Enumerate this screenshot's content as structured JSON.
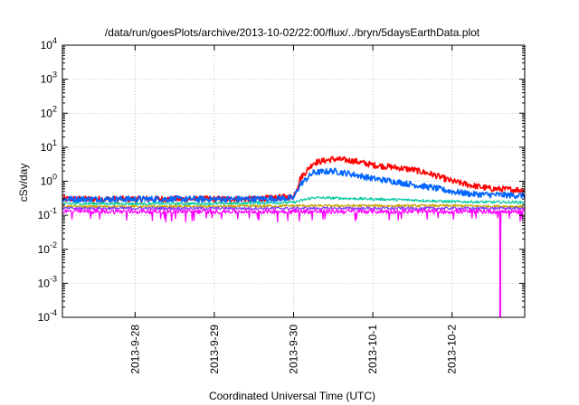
{
  "chart_data": {
    "type": "line",
    "title": "/data/run/goesPlots/archive/2013-10-02/22:00/flux/../bryn/5daysEarthData.plot",
    "xlabel": "Coordinated Universal Time (UTC)",
    "ylabel": "cSv/day",
    "yscale": "log",
    "ylim": [
      0.0001,
      10000
    ],
    "xlim": [
      "2013-09-27 02:00",
      "2013-10-02 22:00"
    ],
    "y_ticks": [
      {
        "base": "10",
        "exp": "-4",
        "value": 0.0001
      },
      {
        "base": "10",
        "exp": "-3",
        "value": 0.001
      },
      {
        "base": "10",
        "exp": "-2",
        "value": 0.01
      },
      {
        "base": "10",
        "exp": "-1",
        "value": 0.1
      },
      {
        "base": "10",
        "exp": "0",
        "value": 1
      },
      {
        "base": "10",
        "exp": "1",
        "value": 10
      },
      {
        "base": "10",
        "exp": "2",
        "value": 100
      },
      {
        "base": "10",
        "exp": "3",
        "value": 1000
      },
      {
        "base": "10",
        "exp": "4",
        "value": 10000
      }
    ],
    "x_ticks": [
      {
        "label": "2013-9-28",
        "value": "2013-09-28 00:00"
      },
      {
        "label": "2013-9-29",
        "value": "2013-09-29 00:00"
      },
      {
        "label": "2013-9-30",
        "value": "2013-09-30 00:00"
      },
      {
        "label": "2013-10-1",
        "value": "2013-10-01 00:00"
      },
      {
        "label": "2013-10-2",
        "value": "2013-10-02 00:00"
      }
    ],
    "grid": true,
    "series": [
      {
        "color": "#ff0000",
        "x": [
          "2013-09-27 02:00",
          "2013-09-28 00:00",
          "2013-09-29 00:00",
          "2013-09-29 12:00",
          "2013-09-30 00:00",
          "2013-09-30 02:00",
          "2013-09-30 06:00",
          "2013-09-30 12:00",
          "2013-09-30 18:00",
          "2013-10-01 00:00",
          "2013-10-01 06:00",
          "2013-10-01 12:00",
          "2013-10-01 18:00",
          "2013-10-02 00:00",
          "2013-10-02 06:00",
          "2013-10-02 12:00",
          "2013-10-02 22:00"
        ],
        "y": [
          0.3,
          0.3,
          0.3,
          0.3,
          0.35,
          1.2,
          3.5,
          4.5,
          4.0,
          3.0,
          2.6,
          2.2,
          1.6,
          1.0,
          0.75,
          0.6,
          0.55
        ]
      },
      {
        "color": "#0064ff",
        "x": [
          "2013-09-27 02:00",
          "2013-09-28 00:00",
          "2013-09-29 00:00",
          "2013-09-29 12:00",
          "2013-09-30 00:00",
          "2013-09-30 02:00",
          "2013-09-30 06:00",
          "2013-09-30 12:00",
          "2013-09-30 18:00",
          "2013-10-01 00:00",
          "2013-10-01 06:00",
          "2013-10-01 12:00",
          "2013-10-01 18:00",
          "2013-10-02 00:00",
          "2013-10-02 06:00",
          "2013-10-02 12:00",
          "2013-10-02 22:00"
        ],
        "y": [
          0.3,
          0.3,
          0.3,
          0.3,
          0.32,
          0.8,
          1.8,
          2.0,
          1.6,
          1.2,
          1.0,
          0.8,
          0.65,
          0.5,
          0.42,
          0.4,
          0.38
        ]
      },
      {
        "color": "#00c8a0",
        "x": [
          "2013-09-27 02:00",
          "2013-09-28 00:00",
          "2013-09-29 00:00",
          "2013-09-30 00:00",
          "2013-09-30 06:00",
          "2013-09-30 12:00",
          "2013-10-01 00:00",
          "2013-10-01 12:00",
          "2013-10-02 00:00",
          "2013-10-02 22:00"
        ],
        "y": [
          0.22,
          0.22,
          0.22,
          0.24,
          0.33,
          0.32,
          0.3,
          0.28,
          0.25,
          0.24
        ]
      },
      {
        "color": "#c8a000",
        "x": [
          "2013-09-27 02:00",
          "2013-09-28 00:00",
          "2013-09-29 00:00",
          "2013-09-30 00:00",
          "2013-10-01 00:00",
          "2013-10-02 00:00",
          "2013-10-02 22:00"
        ],
        "y": [
          0.18,
          0.18,
          0.18,
          0.19,
          0.19,
          0.19,
          0.18
        ]
      },
      {
        "color": "#8040ff",
        "x": [
          "2013-09-27 02:00",
          "2013-09-28 00:00",
          "2013-09-29 00:00",
          "2013-09-30 00:00",
          "2013-10-01 00:00",
          "2013-10-02 00:00",
          "2013-10-02 22:00"
        ],
        "y": [
          0.16,
          0.16,
          0.16,
          0.16,
          0.16,
          0.16,
          0.16
        ]
      },
      {
        "color": "#ff00ff",
        "x": [
          "2013-09-27 02:00",
          "2013-09-28 00:00",
          "2013-09-29 00:00",
          "2013-09-30 00:00",
          "2013-10-01 00:00",
          "2013-10-02 00:00",
          "2013-10-02 12:00",
          "2013-10-02 14:30",
          "2013-10-02 14:35",
          "2013-10-02 14:40",
          "2013-10-02 22:00"
        ],
        "y": [
          0.13,
          0.13,
          0.13,
          0.13,
          0.13,
          0.13,
          0.13,
          0.13,
          0.0001,
          0.13,
          0.13
        ]
      }
    ]
  }
}
